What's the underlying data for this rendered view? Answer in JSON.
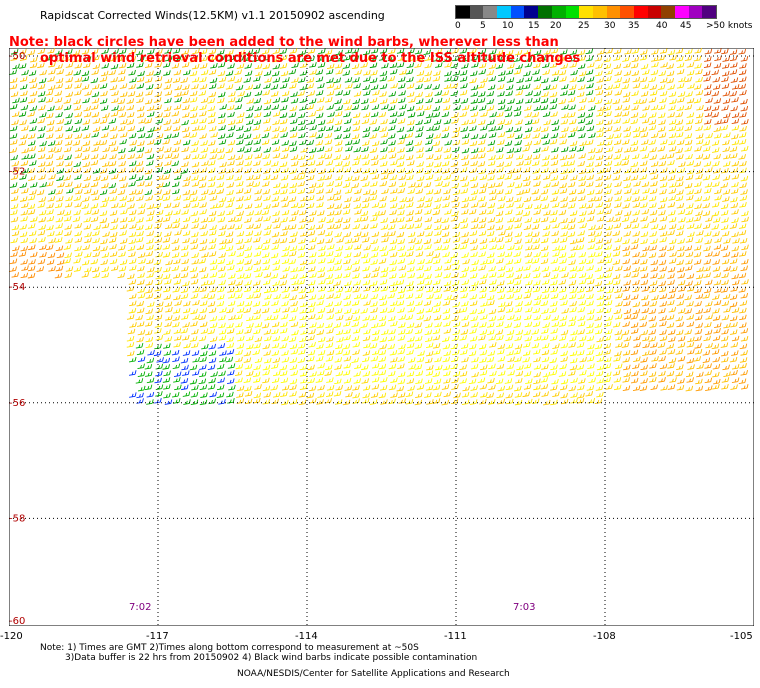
{
  "title": "Rapidscat Corrected Winds(12.5KM) v1.1 20150902 ascending",
  "note_line1": "Note: black circles have been added to the wind barbs, wherever less than",
  "note_line2": "optimal wind retrieval conditions are met due to the ISS altitude changes",
  "colorbar": {
    "labels": [
      "0",
      "5",
      "10",
      "15",
      "20",
      "25",
      "30",
      "35",
      "40",
      "45",
      ">50 knots"
    ],
    "colors": [
      "#000000",
      "#555555",
      "#888888",
      "#00c8ff",
      "#0050ff",
      "#000090",
      "#007000",
      "#00b000",
      "#00e000",
      "#ffe000",
      "#ffc000",
      "#ff9000",
      "#ff5000",
      "#ff0000",
      "#c80000",
      "#904000",
      "#ff00ff",
      "#a000c0",
      "#500080"
    ]
  },
  "lat_labels": [
    "-50",
    "-52",
    "-54",
    "-56",
    "-58",
    "-60"
  ],
  "lon_labels": [
    "-120",
    "-117",
    "-114",
    "-111",
    "-108",
    "-105"
  ],
  "time_labels": [
    "7:02",
    "7:03"
  ],
  "footnote_line1": "Note: 1) Times are GMT 2)Times along bottom correspond to measurement at ~50S",
  "footnote_line2": "3)Data buffer is 22 hrs from 20150902 4) Black wind barbs indicate possible contamination",
  "credit": "NOAA/NESDIS/Center for Satellite Applications and Research"
}
